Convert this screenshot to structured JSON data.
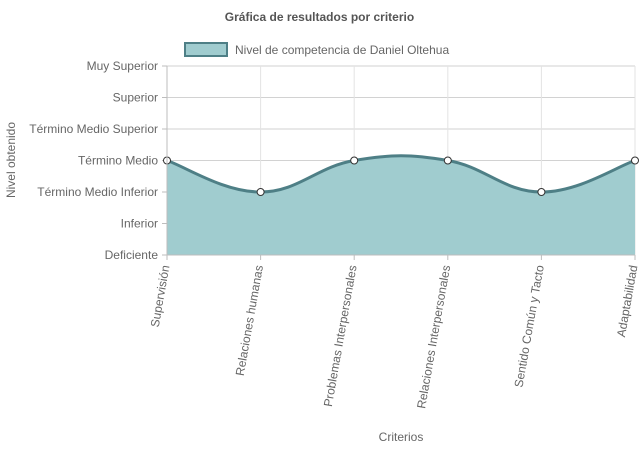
{
  "chart_data": {
    "type": "area",
    "title": "Gráfica de resultados por criterio",
    "xlabel": "Criterios",
    "ylabel": "Nivel obtenido",
    "y_levels": [
      "Deficiente",
      "Inferior",
      "Término Medio Inferior",
      "Término Medio",
      "Término Medio Superior",
      "Superior",
      "Muy Superior"
    ],
    "categories": [
      "Supervisión",
      "Relaciones humanas",
      "Problemas Interpersonales",
      "Relaciones Interpersonales",
      "Sentido Común y Tacto",
      "Adaptabilidad"
    ],
    "series": [
      {
        "name": "Nivel de competencia de Daniel Oltehua",
        "values": [
          "Término Medio",
          "Término Medio Inferior",
          "Término Medio",
          "Término Medio",
          "Término Medio Inferior",
          "Término Medio"
        ],
        "line_color": "#4e7f86",
        "fill_color": "#a0cccf"
      }
    ],
    "grid": true,
    "legend_position": "top"
  }
}
